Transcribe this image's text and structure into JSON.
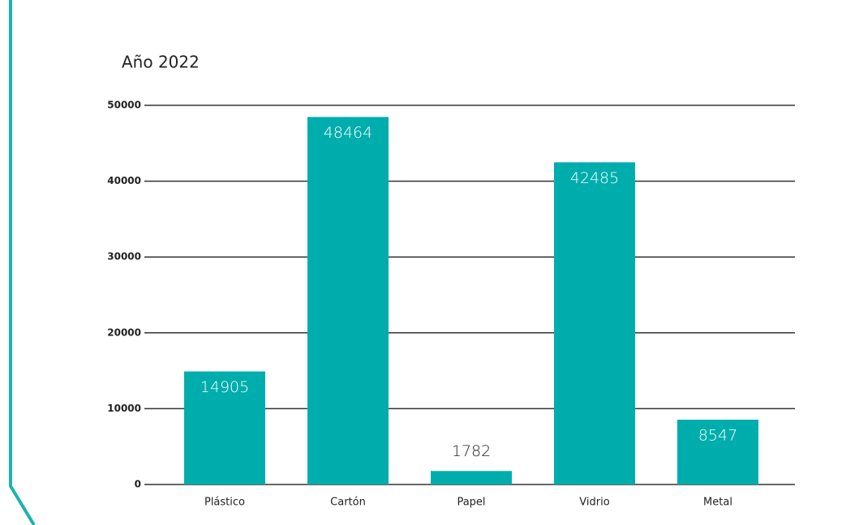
{
  "chart_data": {
    "type": "bar",
    "title": "Año 2022",
    "categories": [
      "Plástico",
      "Cartón",
      "Papel",
      "Vidrio",
      "Metal"
    ],
    "values": [
      14905,
      48464,
      1782,
      42485,
      8547
    ],
    "color": "#00adad",
    "ylim": [
      0,
      50000
    ],
    "yticks": [
      0,
      10000,
      20000,
      30000,
      40000,
      50000
    ],
    "grid": true
  }
}
